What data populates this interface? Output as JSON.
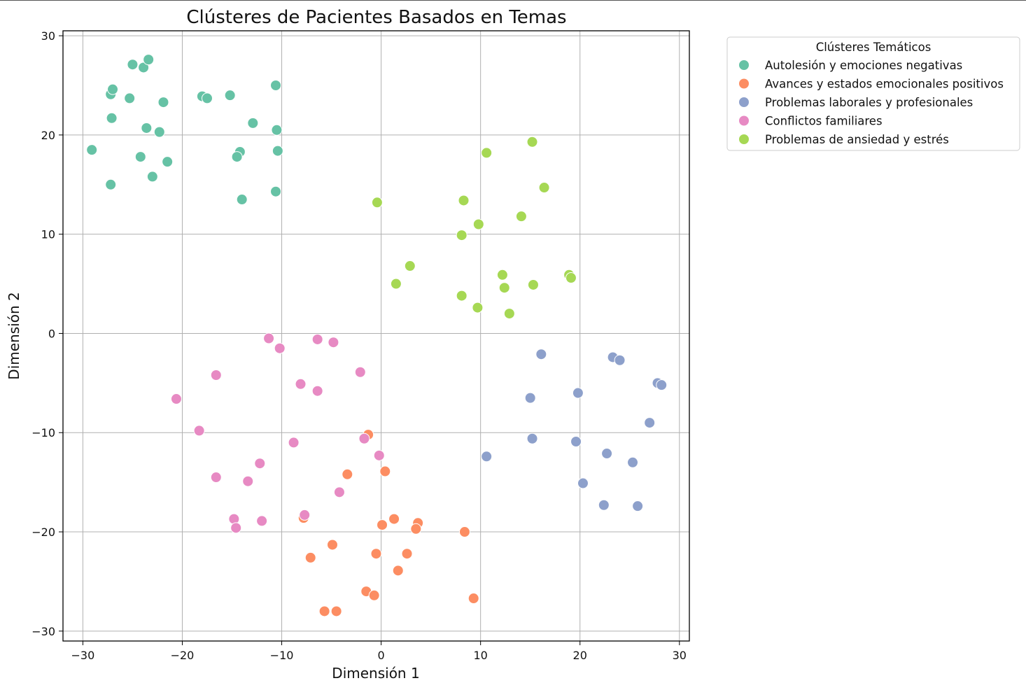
{
  "chart_data": {
    "type": "scatter",
    "title": "Clústeres de Pacientes Basados en Temas",
    "xlabel": "Dimensión 1",
    "ylabel": "Dimensión 2",
    "xlim": [
      -32,
      31
    ],
    "ylim": [
      -31,
      30.5
    ],
    "xticks": [
      -30,
      -20,
      -10,
      0,
      10,
      20,
      30
    ],
    "yticks": [
      -30,
      -20,
      -10,
      0,
      10,
      20,
      30
    ],
    "grid": true,
    "legend": {
      "title": "Clústeres Temáticos",
      "placement": "outside-top-right"
    },
    "series": [
      {
        "name": "Autolesión y emociones negativas",
        "color": "#66c2a5",
        "points": [
          [
            -27.2,
            24.1
          ],
          [
            -27,
            24.6
          ],
          [
            -25,
            27.1
          ],
          [
            -23.9,
            26.8
          ],
          [
            -23.4,
            27.6
          ],
          [
            -25.3,
            23.7
          ],
          [
            -21.9,
            23.3
          ],
          [
            -27.1,
            21.7
          ],
          [
            -23.6,
            20.7
          ],
          [
            -22.3,
            20.3
          ],
          [
            -29.1,
            18.5
          ],
          [
            -24.2,
            17.8
          ],
          [
            -21.5,
            17.3
          ],
          [
            -23,
            15.8
          ],
          [
            -27.2,
            15
          ],
          [
            -18,
            23.9
          ],
          [
            -17.5,
            23.7
          ],
          [
            -15.2,
            24
          ],
          [
            -10.6,
            25
          ],
          [
            -12.9,
            21.2
          ],
          [
            -10.5,
            20.5
          ],
          [
            -14.2,
            18.3
          ],
          [
            -14.5,
            17.8
          ],
          [
            -10.4,
            18.4
          ],
          [
            -10.6,
            14.3
          ],
          [
            -14,
            13.5
          ]
        ]
      },
      {
        "name": "Avances y estados emocionales positivos",
        "color": "#fc8d62",
        "points": [
          [
            -1.3,
            -10.2
          ],
          [
            0.4,
            -13.9
          ],
          [
            -3.4,
            -14.2
          ],
          [
            -7.8,
            -18.6
          ],
          [
            0.1,
            -19.3
          ],
          [
            1.3,
            -18.7
          ],
          [
            3.7,
            -19.1
          ],
          [
            3.5,
            -19.7
          ],
          [
            8.4,
            -20
          ],
          [
            -4.9,
            -21.3
          ],
          [
            -7.1,
            -22.6
          ],
          [
            -0.5,
            -22.2
          ],
          [
            2.6,
            -22.2
          ],
          [
            1.7,
            -23.9
          ],
          [
            -1.5,
            -26
          ],
          [
            -0.7,
            -26.4
          ],
          [
            9.3,
            -26.7
          ],
          [
            -5.7,
            -28
          ],
          [
            -4.5,
            -28
          ]
        ]
      },
      {
        "name": "Problemas laborales y profesionales",
        "color": "#8da0cb",
        "points": [
          [
            16.1,
            -2.1
          ],
          [
            23.3,
            -2.4
          ],
          [
            24,
            -2.7
          ],
          [
            27.8,
            -5
          ],
          [
            28.2,
            -5.2
          ],
          [
            15,
            -6.5
          ],
          [
            19.8,
            -6
          ],
          [
            27,
            -9
          ],
          [
            15.2,
            -10.6
          ],
          [
            19.6,
            -10.9
          ],
          [
            10.6,
            -12.4
          ],
          [
            22.7,
            -12.1
          ],
          [
            25.3,
            -13
          ],
          [
            20.3,
            -15.1
          ],
          [
            22.4,
            -17.3
          ],
          [
            25.8,
            -17.4
          ]
        ]
      },
      {
        "name": "Conflictos familiares",
        "color": "#e78ac3",
        "points": [
          [
            -11.3,
            -0.5
          ],
          [
            -10.2,
            -1.5
          ],
          [
            -6.4,
            -0.6
          ],
          [
            -4.8,
            -0.9
          ],
          [
            -2.1,
            -3.9
          ],
          [
            -16.6,
            -4.2
          ],
          [
            -8.1,
            -5.1
          ],
          [
            -6.4,
            -5.8
          ],
          [
            -20.6,
            -6.6
          ],
          [
            -18.3,
            -9.8
          ],
          [
            -8.8,
            -11
          ],
          [
            -1.7,
            -10.6
          ],
          [
            -0.2,
            -12.3
          ],
          [
            -12.2,
            -13.1
          ],
          [
            -16.6,
            -14.5
          ],
          [
            -13.4,
            -14.9
          ],
          [
            -4.2,
            -16
          ],
          [
            -7.7,
            -18.3
          ],
          [
            -14.8,
            -18.7
          ],
          [
            -12,
            -18.9
          ],
          [
            -14.6,
            -19.6
          ]
        ]
      },
      {
        "name": "Problemas de ansiedad y estrés",
        "color": "#a6d854",
        "points": [
          [
            15.2,
            19.3
          ],
          [
            10.6,
            18.2
          ],
          [
            16.4,
            14.7
          ],
          [
            -0.4,
            13.2
          ],
          [
            8.3,
            13.4
          ],
          [
            14.1,
            11.8
          ],
          [
            9.8,
            11
          ],
          [
            8.1,
            9.9
          ],
          [
            2.9,
            6.8
          ],
          [
            12.2,
            5.9
          ],
          [
            18.9,
            5.9
          ],
          [
            19.1,
            5.6
          ],
          [
            1.5,
            5
          ],
          [
            12.4,
            4.6
          ],
          [
            15.3,
            4.9
          ],
          [
            8.1,
            3.8
          ],
          [
            9.7,
            2.6
          ],
          [
            12.9,
            2
          ]
        ]
      }
    ]
  }
}
